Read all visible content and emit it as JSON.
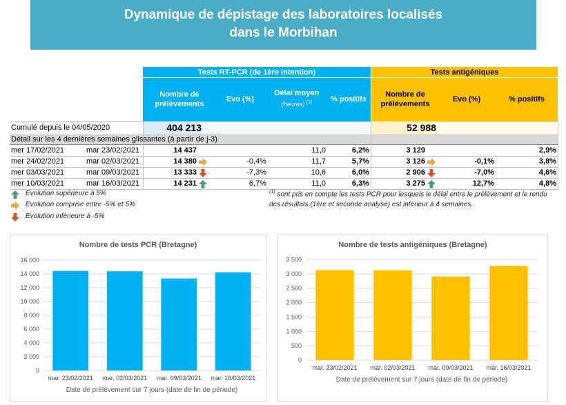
{
  "banner": {
    "line1": "Dynamique de dépistage des laboratoires localisés",
    "line2": "dans le Morbihan"
  },
  "table": {
    "group_pcr": "Tests RT-PCR (de 1ère intention)",
    "group_ag": "Tests antigéniques",
    "headers": {
      "nb_prelevements": "Nombre de prélèvements",
      "evo": "Evo (%)",
      "delai": "Délai moyen",
      "delai_unit": "(heures)",
      "delai_note": "(1)",
      "positifs": "% positifs",
      "ag_nb": "Nombre de prélèvements",
      "ag_evo": "Evo (%)",
      "ag_positifs": "% positifs"
    },
    "cumul_label": "Cumulé depuis le 04/05/2020",
    "cumul_pcr": "404 213",
    "cumul_ag": "52 988",
    "detail_label": "Détail sur les 4 dernières semaines glissantes (à partir de j-3)",
    "rows": [
      {
        "start": "mer 17/02/2021",
        "end": "mar 23/02/2021",
        "pcr": "14 437",
        "pcr_arrow": "",
        "pcr_evo": "",
        "delai": "11,0",
        "pos": "6,2%",
        "ag": "3 129",
        "ag_arrow": "",
        "ag_evo": "",
        "ag_pos": "2,9%"
      },
      {
        "start": "mer 24/02/2021",
        "end": "mar 02/03/2021",
        "pcr": "14 380",
        "pcr_arrow": "flat",
        "pcr_evo": "-0,4%",
        "delai": "11,7",
        "pos": "5,7%",
        "ag": "3 126",
        "ag_arrow": "flat",
        "ag_evo": "-0,1%",
        "ag_pos": "3,8%"
      },
      {
        "start": "mer 03/03/2021",
        "end": "mar 09/03/2021",
        "pcr": "13 333",
        "pcr_arrow": "down",
        "pcr_evo": "-7,3%",
        "delai": "10,6",
        "pos": "6,0%",
        "ag": "2 906",
        "ag_arrow": "down",
        "ag_evo": "-7,0%",
        "ag_pos": "4,6%"
      },
      {
        "start": "mer 10/03/2021",
        "end": "mar 16/03/2021",
        "pcr": "14 231",
        "pcr_arrow": "up",
        "pcr_evo": "6,7%",
        "delai": "11,0",
        "pos": "6,3%",
        "ag": "3 275",
        "ag_arrow": "up",
        "ag_evo": "12,7%",
        "ag_pos": "4,8%"
      }
    ]
  },
  "legend": {
    "up": "Evolution supérieure à 5%",
    "flat": "Evolution comprise entre -5% et 5%",
    "down": "Evolution inférieure à -5%"
  },
  "footnote": {
    "mark": "(1)",
    "text": "sont pris en compte les tests PCR pour lesquels le délai entre le prélèvement et le rendu des résultats (1ère et seconde analyse) est inférieur à 4 semaines."
  },
  "colors": {
    "banner": "#4AACC6",
    "pcr": "#00B0F0",
    "ag": "#FFC000",
    "arrow_up": "#4E9A76",
    "arrow_flat": "#E6A64B",
    "arrow_down": "#D9532B"
  },
  "chart_data": [
    {
      "type": "bar",
      "title": "Nombre de tests PCR (Bretagne)",
      "xlabel": "Date de prélèvement sur 7 jours (date de fin de période)",
      "ylabel": "",
      "categories": [
        "mar. 23/02/2021",
        "mar. 02/03/2021",
        "mar. 09/03/2021",
        "mar. 16/03/2021"
      ],
      "values": [
        14437,
        14380,
        13333,
        14231
      ],
      "ylim": [
        0,
        16000
      ],
      "yticks": [
        0,
        2000,
        4000,
        6000,
        8000,
        10000,
        12000,
        14000,
        16000
      ],
      "ytick_labels": [
        "0",
        "2 000",
        "4 000",
        "6 000",
        "8 000",
        "10 000",
        "12 000",
        "14 000",
        "16 000"
      ],
      "color": "#00B0F0",
      "grid": true
    },
    {
      "type": "bar",
      "title": "Nombre de tests antigéniques (Bretagne)",
      "xlabel": "Date de prélèvement sur 7 jours (date de fin de période)",
      "ylabel": "",
      "categories": [
        "mar. 23/02/2021",
        "mar. 02/03/2021",
        "mar. 09/03/2021",
        "mar. 16/03/2021"
      ],
      "values": [
        3129,
        3126,
        2906,
        3275
      ],
      "ylim": [
        0,
        3500
      ],
      "yticks": [
        0,
        500,
        1000,
        1500,
        2000,
        2500,
        3000,
        3500
      ],
      "ytick_labels": [
        "0",
        "500",
        "1 000",
        "1 500",
        "2 000",
        "2 500",
        "3 000",
        "3 500"
      ],
      "color": "#FFC000",
      "grid": true
    }
  ]
}
